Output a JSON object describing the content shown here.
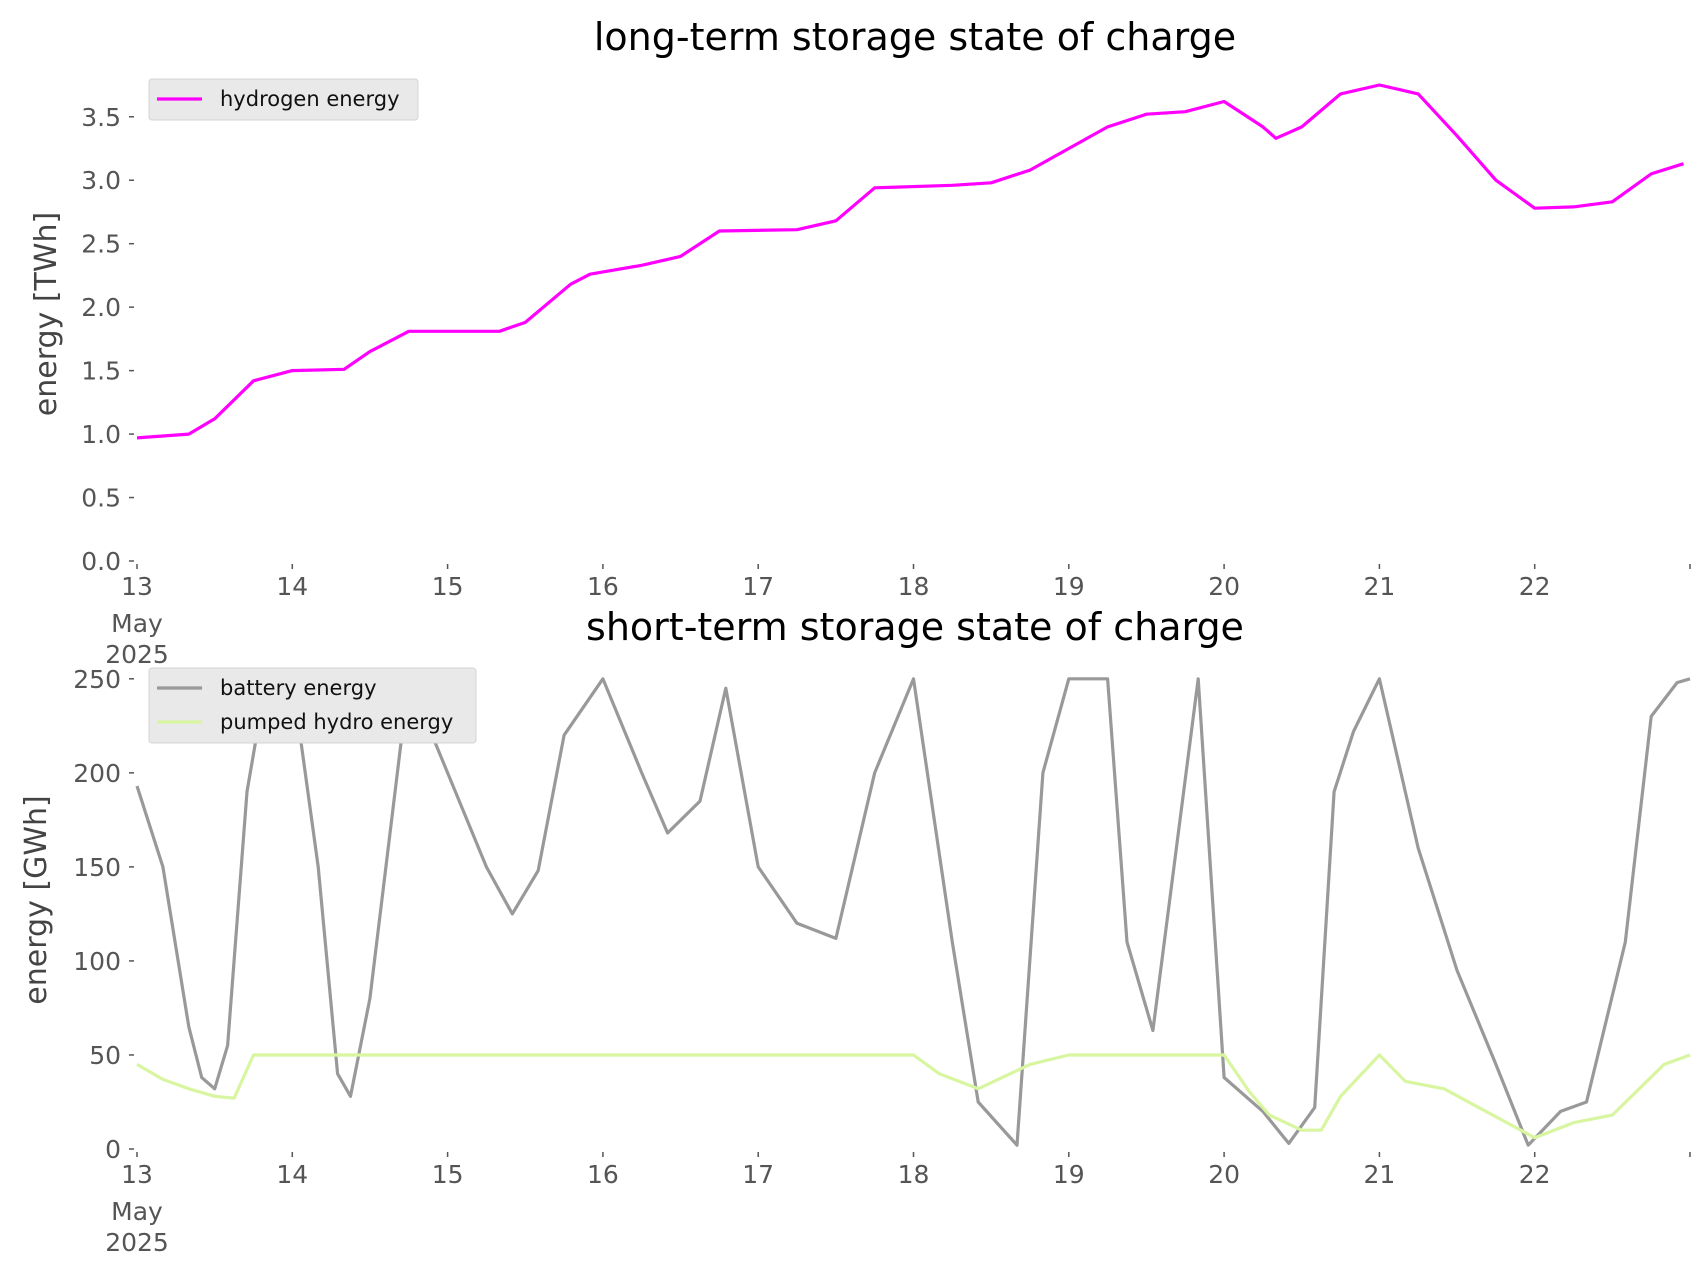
{
  "chart_data": [
    {
      "type": "line",
      "title": "long-term storage state of charge",
      "xlabel": "",
      "ylabel": "energy [TWh]",
      "x_start": "2025-05-13",
      "x_end": "2025-05-23",
      "xticks": [
        "13",
        "14",
        "15",
        "16",
        "17",
        "18",
        "19",
        "20",
        "21",
        "22"
      ],
      "xtick_first_extra": [
        "May",
        "2025"
      ],
      "ylim": [
        0,
        3.9
      ],
      "yticks": [
        "0.0",
        "0.5",
        "1.0",
        "1.5",
        "2.0",
        "2.5",
        "3.0",
        "3.5"
      ],
      "ytick_values": [
        0,
        0.5,
        1.0,
        1.5,
        2.0,
        2.5,
        3.0,
        3.5
      ],
      "grid": false,
      "legend_position": "top-left",
      "series": [
        {
          "name": "hydrogen energy",
          "color": "#ff00ff",
          "x": [
            "2025-05-13 00:00",
            "2025-05-13 08:00",
            "2025-05-13 12:00",
            "2025-05-13 18:00",
            "2025-05-14 00:00",
            "2025-05-14 08:00",
            "2025-05-14 12:00",
            "2025-05-14 18:00",
            "2025-05-15 08:00",
            "2025-05-15 12:00",
            "2025-05-15 19:00",
            "2025-05-15 22:00",
            "2025-05-16 06:00",
            "2025-05-16 12:00",
            "2025-05-16 18:00",
            "2025-05-17 06:00",
            "2025-05-17 12:00",
            "2025-05-17 18:00",
            "2025-05-18 06:00",
            "2025-05-18 12:00",
            "2025-05-18 18:00",
            "2025-05-19 06:00",
            "2025-05-19 12:00",
            "2025-05-19 18:00",
            "2025-05-20 00:00",
            "2025-05-20 06:00",
            "2025-05-20 08:00",
            "2025-05-20 12:00",
            "2025-05-20 18:00",
            "2025-05-21 00:00",
            "2025-05-21 06:00",
            "2025-05-21 12:00",
            "2025-05-21 18:00",
            "2025-05-22 00:00",
            "2025-05-22 06:00",
            "2025-05-22 12:00",
            "2025-05-22 18:00",
            "2025-05-22 23:00"
          ],
          "values": [
            0.97,
            1.0,
            1.12,
            1.42,
            1.5,
            1.51,
            1.65,
            1.81,
            1.81,
            1.88,
            2.18,
            2.26,
            2.33,
            2.4,
            2.6,
            2.61,
            2.68,
            2.94,
            2.96,
            2.98,
            3.08,
            3.42,
            3.52,
            3.54,
            3.62,
            3.42,
            3.33,
            3.42,
            3.68,
            3.75,
            3.68,
            3.35,
            3.0,
            2.78,
            2.79,
            2.83,
            3.05,
            3.13
          ]
        }
      ]
    },
    {
      "type": "line",
      "title": "short-term storage state of charge",
      "xlabel": "",
      "ylabel": "energy [GWh]",
      "x_start": "2025-05-13",
      "x_end": "2025-05-23",
      "xticks": [
        "13",
        "14",
        "15",
        "16",
        "17",
        "18",
        "19",
        "20",
        "21",
        "22"
      ],
      "xtick_first_extra": [
        "May",
        "2025"
      ],
      "ylim": [
        0,
        260
      ],
      "yticks": [
        "0",
        "50",
        "100",
        "150",
        "200",
        "250"
      ],
      "ytick_values": [
        0,
        50,
        100,
        150,
        200,
        250
      ],
      "grid": false,
      "legend_position": "top-left",
      "series": [
        {
          "name": "battery energy",
          "color": "#999999",
          "x": [
            "2025-05-13 00:00",
            "2025-05-13 04:00",
            "2025-05-13 08:00",
            "2025-05-13 10:00",
            "2025-05-13 12:00",
            "2025-05-13 14:00",
            "2025-05-13 17:00",
            "2025-05-13 20:00",
            "2025-05-14 00:00",
            "2025-05-14 04:00",
            "2025-05-14 07:00",
            "2025-05-14 09:00",
            "2025-05-14 12:00",
            "2025-05-14 18:00",
            "2025-05-15 00:00",
            "2025-05-15 06:00",
            "2025-05-15 10:00",
            "2025-05-15 14:00",
            "2025-05-15 18:00",
            "2025-05-16 00:00",
            "2025-05-16 06:00",
            "2025-05-16 10:00",
            "2025-05-16 15:00",
            "2025-05-16 19:00",
            "2025-05-17 00:00",
            "2025-05-17 06:00",
            "2025-05-17 12:00",
            "2025-05-17 18:00",
            "2025-05-18 00:00",
            "2025-05-18 06:00",
            "2025-05-18 10:00",
            "2025-05-18 16:00",
            "2025-05-18 20:00",
            "2025-05-19 00:00",
            "2025-05-19 06:00",
            "2025-05-19 09:00",
            "2025-05-19 13:00",
            "2025-05-19 17:00",
            "2025-05-19 20:00",
            "2025-05-20 00:00",
            "2025-05-20 06:00",
            "2025-05-20 10:00",
            "2025-05-20 14:00",
            "2025-05-20 17:00",
            "2025-05-20 20:00",
            "2025-05-21 00:00",
            "2025-05-21 06:00",
            "2025-05-21 12:00",
            "2025-05-21 18:00",
            "2025-05-21 23:00",
            "2025-05-22 04:00",
            "2025-05-22 08:00",
            "2025-05-22 14:00",
            "2025-05-22 18:00",
            "2025-05-22 22:00",
            "2025-05-23 00:00"
          ],
          "values": [
            193,
            150,
            65,
            38,
            32,
            55,
            190,
            250,
            250,
            150,
            40,
            28,
            80,
            250,
            200,
            150,
            125,
            148,
            220,
            250,
            200,
            168,
            185,
            245,
            150,
            120,
            112,
            200,
            250,
            110,
            25,
            2,
            200,
            250,
            250,
            110,
            63,
            170,
            250,
            38,
            20,
            3,
            22,
            190,
            222,
            250,
            160,
            95,
            45,
            2,
            20,
            25,
            110,
            230,
            248,
            250
          ]
        },
        {
          "name": "pumped hydro energy",
          "color": "#d8f5a0",
          "x": [
            "2025-05-13 00:00",
            "2025-05-13 04:00",
            "2025-05-13 08:00",
            "2025-05-13 12:00",
            "2025-05-13 15:00",
            "2025-05-13 18:00",
            "2025-05-18 00:00",
            "2025-05-18 04:00",
            "2025-05-18 10:00",
            "2025-05-18 18:00",
            "2025-05-19 00:00",
            "2025-05-20 00:00",
            "2025-05-20 04:00",
            "2025-05-20 07:00",
            "2025-05-20 12:00",
            "2025-05-20 15:00",
            "2025-05-20 18:00",
            "2025-05-21 00:00",
            "2025-05-21 04:00",
            "2025-05-21 10:00",
            "2025-05-22 00:00",
            "2025-05-22 06:00",
            "2025-05-22 12:00",
            "2025-05-22 20:00",
            "2025-05-23 00:00"
          ],
          "values": [
            45,
            37,
            32,
            28,
            27,
            50,
            50,
            40,
            32,
            45,
            50,
            50,
            30,
            18,
            10,
            10,
            28,
            50,
            36,
            32,
            6,
            14,
            18,
            45,
            50
          ]
        }
      ]
    }
  ]
}
